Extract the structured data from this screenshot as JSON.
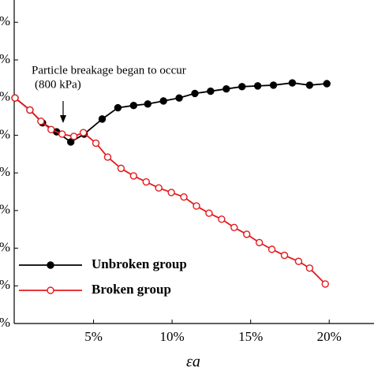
{
  "chart_data": {
    "type": "line",
    "x_label": "εa",
    "annotations": [
      "Particle breakage began to occur",
      "(800 kPa)"
    ],
    "xlim": [
      -0.05,
      22.85
    ],
    "ylim": [
      0,
      8.34
    ],
    "xticks": [
      {
        "value": 5,
        "label": "5%"
      },
      {
        "value": 10,
        "label": "10%"
      },
      {
        "value": 15,
        "label": "15%"
      },
      {
        "value": 20,
        "label": "20%"
      }
    ],
    "yticks": [
      {
        "value": 0,
        "label": "%"
      },
      {
        "value": 1,
        "label": "%"
      },
      {
        "value": 2,
        "label": "%"
      },
      {
        "value": 3,
        "label": "%"
      },
      {
        "value": 4,
        "label": "%"
      },
      {
        "value": 5,
        "label": "%"
      },
      {
        "value": 6,
        "label": "%"
      },
      {
        "value": 7,
        "label": "%"
      },
      {
        "value": 8,
        "label": "%"
      }
    ],
    "grid": false,
    "legend": "lower left",
    "series": [
      {
        "name": "Unbroken group",
        "color": "#000000",
        "marker": "filled",
        "x": [
          0,
          0.95,
          1.75,
          2.65,
          3.55,
          4.4,
          5.55,
          6.55,
          7.55,
          8.45,
          9.45,
          10.45,
          11.45,
          12.45,
          13.45,
          14.45,
          15.45,
          16.45,
          17.65,
          18.75,
          19.85
        ],
        "values": [
          5.99,
          5.67,
          5.33,
          5.09,
          4.82,
          5.03,
          5.43,
          5.73,
          5.79,
          5.83,
          5.91,
          5.99,
          6.11,
          6.17,
          6.23,
          6.29,
          6.31,
          6.33,
          6.39,
          6.33,
          6.37
        ]
      },
      {
        "name": "Broken group",
        "color": "#e31a1c",
        "marker": "open",
        "x": [
          0,
          0.95,
          1.65,
          2.3,
          3.0,
          3.75,
          4.35,
          5.15,
          5.9,
          6.75,
          7.55,
          8.35,
          9.15,
          9.95,
          10.75,
          11.55,
          12.35,
          13.15,
          13.95,
          14.75,
          15.55,
          16.35,
          17.15,
          18.05,
          18.75,
          19.75
        ],
        "values": [
          5.99,
          5.67,
          5.37,
          5.15,
          5.03,
          4.97,
          5.07,
          4.79,
          4.42,
          4.12,
          3.92,
          3.76,
          3.6,
          3.48,
          3.36,
          3.12,
          2.93,
          2.77,
          2.55,
          2.37,
          2.15,
          1.97,
          1.81,
          1.65,
          1.47,
          1.05
        ]
      }
    ]
  }
}
